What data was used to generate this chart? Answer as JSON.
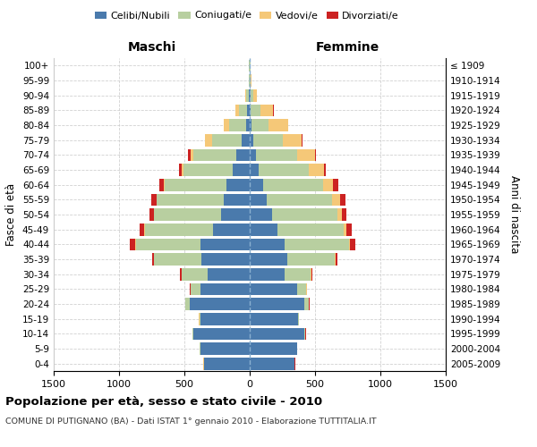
{
  "age_groups": [
    "0-4",
    "5-9",
    "10-14",
    "15-19",
    "20-24",
    "25-29",
    "30-34",
    "35-39",
    "40-44",
    "45-49",
    "50-54",
    "55-59",
    "60-64",
    "65-69",
    "70-74",
    "75-79",
    "80-84",
    "85-89",
    "90-94",
    "95-99",
    "100+"
  ],
  "birth_years": [
    "2005-2009",
    "2000-2004",
    "1995-1999",
    "1990-1994",
    "1985-1989",
    "1980-1984",
    "1975-1979",
    "1970-1974",
    "1965-1969",
    "1960-1964",
    "1955-1959",
    "1950-1954",
    "1945-1949",
    "1940-1944",
    "1935-1939",
    "1930-1934",
    "1925-1929",
    "1920-1924",
    "1915-1919",
    "1910-1914",
    "≤ 1909"
  ],
  "maschi": {
    "celibi": [
      350,
      380,
      430,
      380,
      460,
      380,
      320,
      370,
      380,
      280,
      220,
      200,
      180,
      130,
      100,
      60,
      30,
      20,
      5,
      3,
      2
    ],
    "coniugati": [
      2,
      2,
      5,
      5,
      30,
      70,
      200,
      360,
      490,
      520,
      510,
      510,
      470,
      380,
      330,
      230,
      130,
      60,
      20,
      5,
      2
    ],
    "vedovi": [
      2,
      2,
      2,
      2,
      3,
      3,
      3,
      5,
      5,
      5,
      5,
      5,
      5,
      10,
      25,
      50,
      40,
      30,
      8,
      2,
      0
    ],
    "divorziati": [
      2,
      2,
      2,
      2,
      3,
      5,
      8,
      15,
      40,
      40,
      35,
      40,
      35,
      20,
      15,
      5,
      2,
      2,
      2,
      0,
      0
    ]
  },
  "femmine": {
    "nubili": [
      340,
      360,
      420,
      370,
      420,
      360,
      270,
      290,
      270,
      210,
      170,
      130,
      100,
      70,
      50,
      30,
      15,
      10,
      5,
      3,
      2
    ],
    "coniugate": [
      2,
      2,
      5,
      5,
      30,
      70,
      195,
      360,
      490,
      510,
      500,
      500,
      460,
      380,
      310,
      220,
      130,
      70,
      20,
      5,
      2
    ],
    "vedove": [
      2,
      2,
      2,
      2,
      5,
      5,
      5,
      8,
      10,
      20,
      35,
      60,
      80,
      120,
      140,
      150,
      150,
      100,
      30,
      5,
      2
    ],
    "divorziate": [
      2,
      2,
      2,
      2,
      3,
      5,
      8,
      15,
      40,
      40,
      35,
      40,
      35,
      15,
      10,
      5,
      2,
      2,
      2,
      0,
      0
    ]
  },
  "colors": {
    "celibi_nubili": "#4a7aac",
    "coniugati": "#b8cfa0",
    "vedovi": "#f5c878",
    "divorziati": "#cc2222"
  },
  "xlim": 1500,
  "xtick_step": 500,
  "title": "Popolazione per età, sesso e stato civile - 2010",
  "subtitle": "COMUNE DI PUTIGNANO (BA) - Dati ISTAT 1° gennaio 2010 - Elaborazione TUTTITALIA.IT",
  "ylabel_left": "Fasce di età",
  "ylabel_right": "Anni di nascita",
  "xlabel_left": "Maschi",
  "xlabel_right": "Femmine",
  "legend_labels": [
    "Celibi/Nubili",
    "Coniugati/e",
    "Vedovi/e",
    "Divorziati/e"
  ],
  "background_color": "#ffffff",
  "grid_color": "#cccccc",
  "bar_height": 0.82
}
